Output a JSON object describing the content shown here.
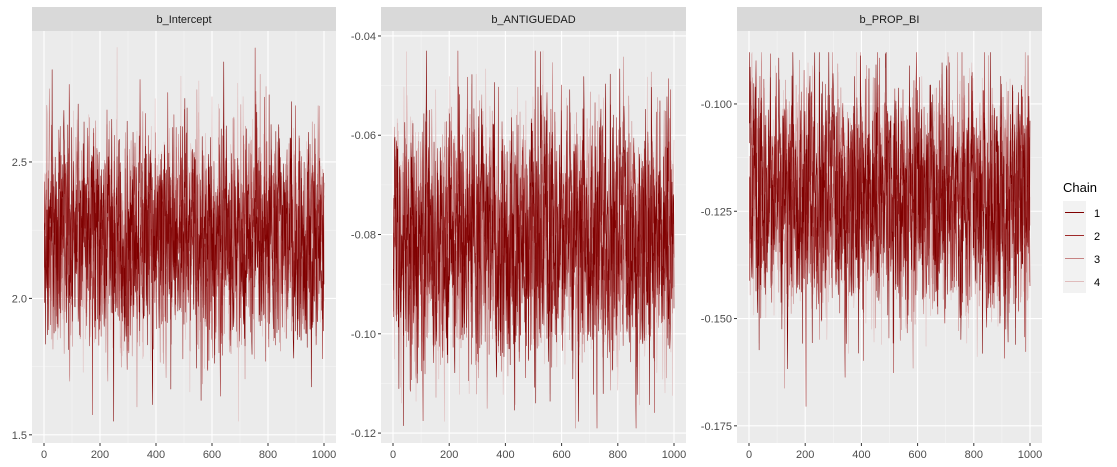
{
  "chart_data": {
    "type": "line",
    "x_domain": [
      0,
      1000
    ],
    "x_ticks": [
      0,
      200,
      400,
      600,
      800,
      1000
    ],
    "legend": {
      "title": "Chain",
      "placement": "right",
      "entries": [
        {
          "label": "1",
          "color": "#7f0000"
        },
        {
          "label": "2",
          "color": "#9f2a2a"
        },
        {
          "label": "3",
          "color": "#c78383"
        },
        {
          "label": "4",
          "color": "#e0bcbc"
        }
      ]
    },
    "panels": [
      {
        "title": "b_Intercept",
        "ylim": [
          1.47,
          2.98
        ],
        "y_ticks": [
          1.5,
          2.0,
          2.5
        ],
        "y_tick_labels": [
          "1.5",
          "2.0",
          "2.5"
        ],
        "mean": 2.22,
        "sd": 0.19,
        "min": 1.55,
        "max": 2.92
      },
      {
        "title": "b_ANTIGUEDAD",
        "ylim": [
          -0.122,
          -0.039
        ],
        "y_ticks": [
          -0.12,
          -0.1,
          -0.08,
          -0.06,
          -0.04
        ],
        "y_tick_labels": [
          "-0.12",
          "-0.10",
          "-0.08",
          "-0.06",
          "-0.04"
        ],
        "mean": -0.081,
        "sd": 0.012,
        "min": -0.119,
        "max": -0.043
      },
      {
        "title": "b_PROP_BI",
        "ylim": [
          -0.179,
          -0.083
        ],
        "y_ticks": [
          -0.175,
          -0.15,
          -0.125,
          -0.1
        ],
        "y_tick_labels": [
          "-0.175",
          "-0.150",
          "-0.125",
          "-0.100"
        ],
        "mean": -0.122,
        "sd": 0.013,
        "min": -0.176,
        "max": -0.088
      }
    ],
    "series": [
      {
        "name": "1",
        "iterations": 1000
      },
      {
        "name": "2",
        "iterations": 1000
      },
      {
        "name": "3",
        "iterations": 1000
      },
      {
        "name": "4",
        "iterations": 1000
      }
    ],
    "grid": true
  }
}
